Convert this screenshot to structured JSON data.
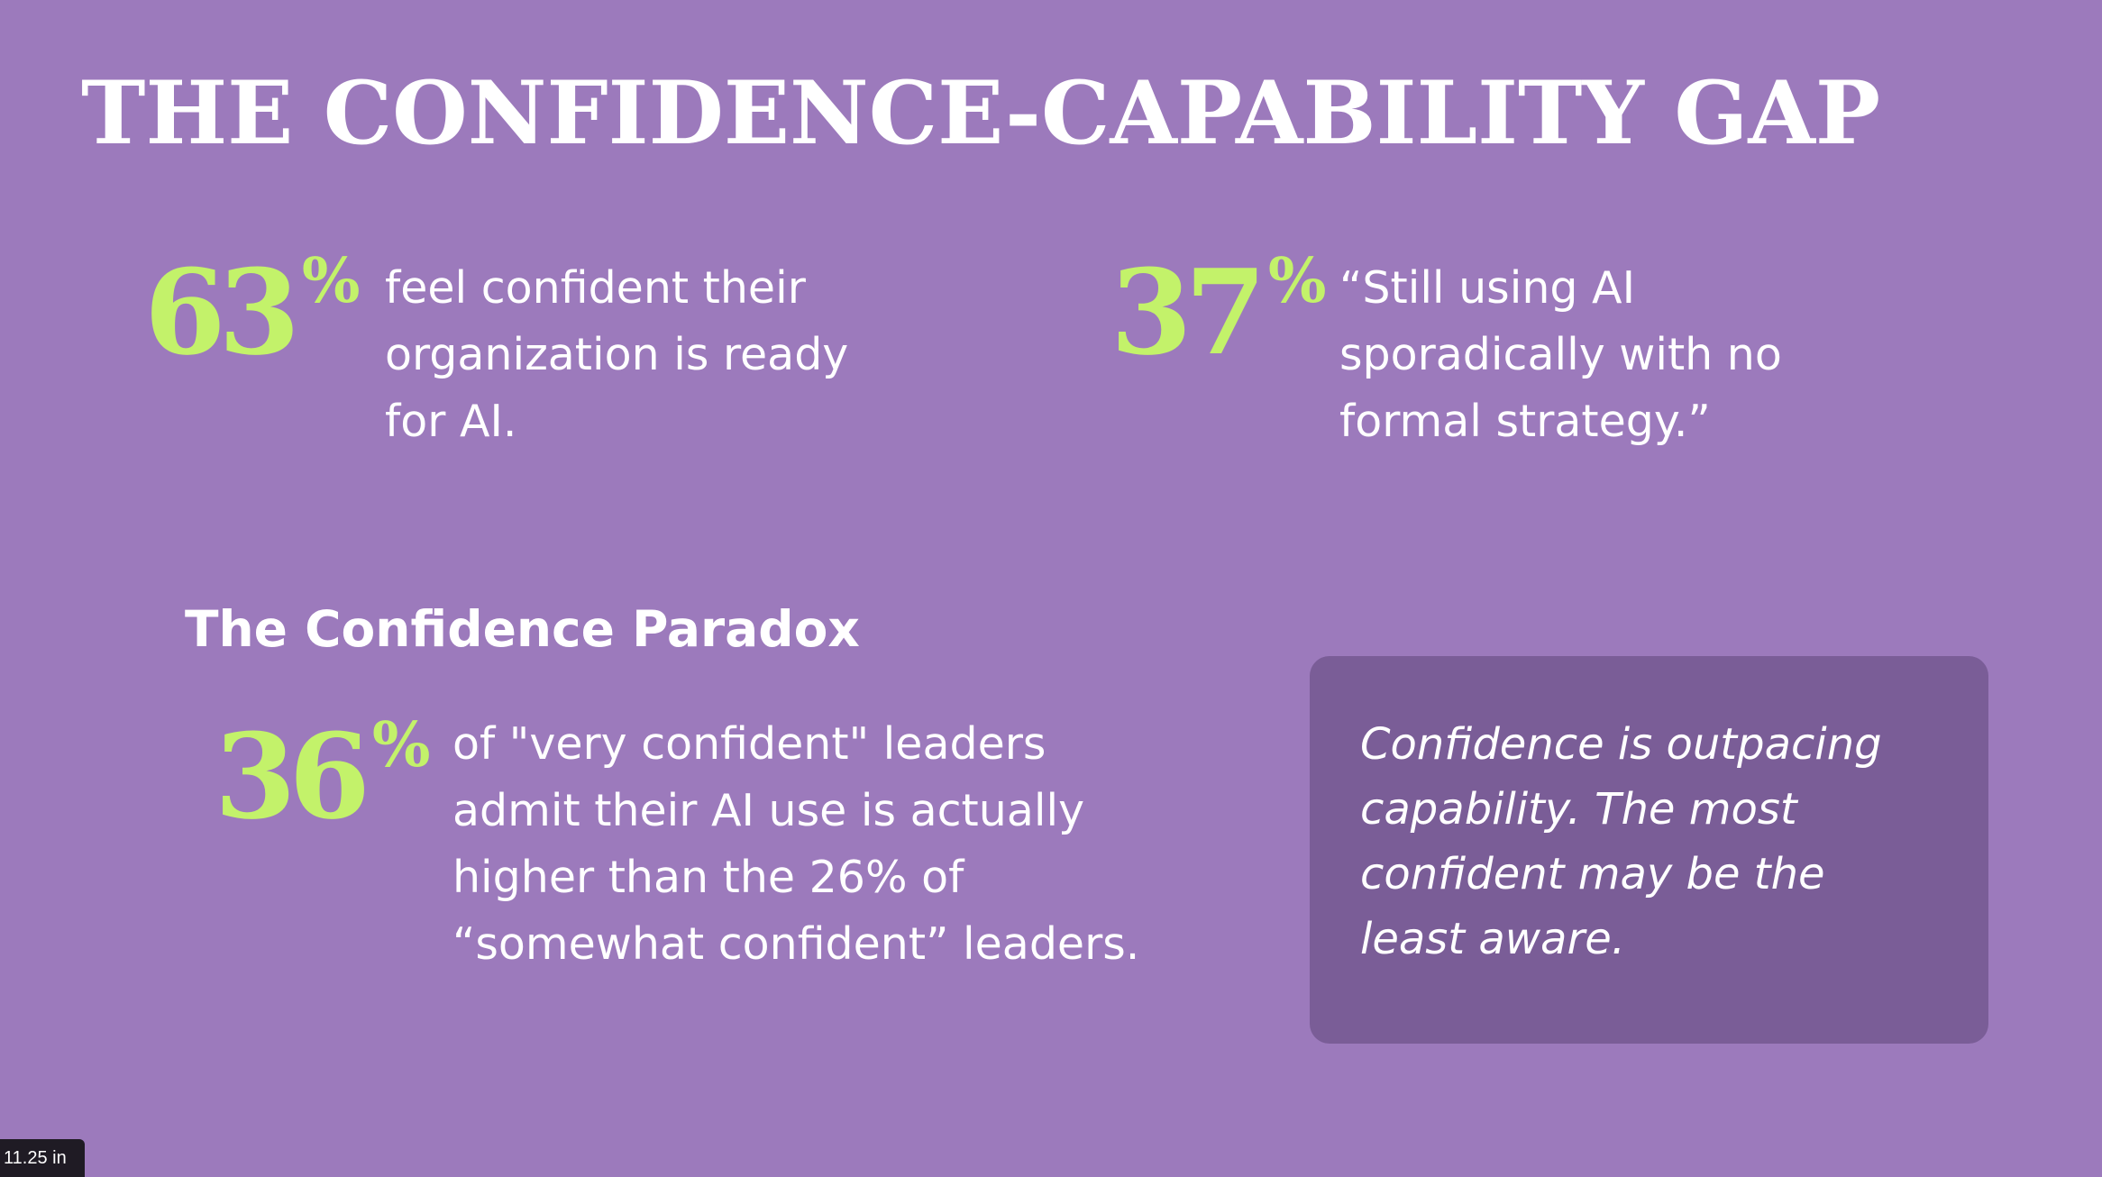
{
  "slide": {
    "title": "THE CONFIDENCE-CAPABILITY GAP",
    "stats": [
      {
        "number": "63",
        "percent_sign": "%",
        "lines": [
          "feel confident their",
          "organization is ready",
          "for AI."
        ]
      },
      {
        "number": "37",
        "percent_sign": "%",
        "lines": [
          "“Still using AI",
          "sporadically with no",
          "formal strategy.”"
        ]
      },
      {
        "number": "36",
        "percent_sign": "%",
        "lines": [
          "of \"very confident\" leaders",
          "admit their AI use is actually",
          "higher than the 26% of",
          "“somewhat confident” leaders."
        ]
      }
    ],
    "section_heading": "The Confidence Paradox",
    "callout": {
      "lines": [
        "Confidence is outpacing",
        "capability. The most",
        "confident may be the",
        "least aware."
      ]
    }
  },
  "page_size_badge": "11.25 in",
  "colors": {
    "background": "#9c7abc",
    "accent_green": "#c3f26a",
    "callout_box": "#7a5d97",
    "text": "#ffffff"
  }
}
